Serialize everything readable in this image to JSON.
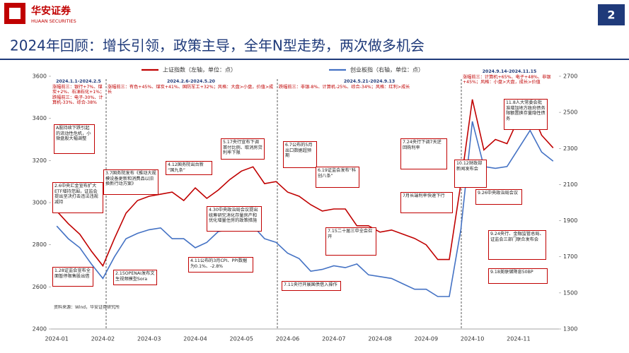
{
  "header": {
    "logo_cn": "华安证券",
    "logo_en": "HUAAN SECURITIES",
    "page_number": "2"
  },
  "chart_data": {
    "type": "line",
    "title": "2024年回顾：增长引领，政策主导，全年N型走势，两次做多机会",
    "categories": [
      "2024-01",
      null,
      null,
      null,
      "2024-02",
      null,
      null,
      null,
      "2024-03",
      null,
      null,
      null,
      "2024-04",
      null,
      null,
      null,
      "2024-05",
      null,
      null,
      null,
      "2024-06",
      null,
      null,
      null,
      "2024-07",
      null,
      null,
      null,
      "2024-08",
      null,
      null,
      null,
      "2024-09",
      null,
      null,
      null,
      "2024-10",
      null,
      null,
      null,
      "2024-11",
      null,
      null,
      null
    ],
    "series": [
      {
        "name": "上证指数（左轴，单位：点）",
        "color": "#c00000",
        "values": [
          2960,
          2900,
          2850,
          2770,
          2700,
          2830,
          2950,
          3010,
          3030,
          3040,
          3050,
          3010,
          3070,
          3020,
          3060,
          3110,
          3150,
          3170,
          3090,
          3100,
          3050,
          3030,
          2990,
          2960,
          2970,
          2970,
          2890,
          2890,
          2860,
          2870,
          2850,
          2830,
          2800,
          2730,
          2730,
          3090,
          3490,
          3250,
          3300,
          3280,
          3400,
          3450,
          3320,
          3260
        ]
      },
      {
        "name": "创业板指（右轴，单位：点）",
        "color": "#4472c4",
        "axis": "y2",
        "values": [
          1870,
          1800,
          1750,
          1660,
          1580,
          1700,
          1800,
          1830,
          1850,
          1860,
          1800,
          1800,
          1750,
          1780,
          1840,
          1850,
          1870,
          1870,
          1800,
          1780,
          1720,
          1690,
          1620,
          1630,
          1650,
          1640,
          1660,
          1600,
          1590,
          1580,
          1550,
          1520,
          1520,
          1480,
          1480,
          1850,
          2450,
          2200,
          2190,
          2200,
          2300,
          2400,
          2280,
          2230
        ]
      }
    ],
    "ylim": [
      2400,
      3600
    ],
    "yticks": [
      2400,
      2600,
      2800,
      3000,
      3200,
      3400,
      3600
    ],
    "y2lim": [
      1300,
      2700
    ],
    "y2ticks": [
      1300,
      1500,
      1700,
      1900,
      2100,
      2300,
      2500,
      2700
    ],
    "periods": [
      {
        "dates": "2024.1.1-2024.2.5",
        "text": "涨幅前三：银行+7%、煤炭+2%、石油石化+1%；跌幅前三：电子-30%、计算机-33%、综合-38%"
      },
      {
        "dates": "2024.2.6-2024.5.20",
        "text": "涨幅前三：有色+45%、煤炭+41%、国防军工+32%；风格：大盘>小盘，价值>成长"
      },
      {
        "dates": "2024.5.21-2024.9.13",
        "text": "跌幅前三：非银-8%、计算机-25%、综合-34%；风格：红利>成长"
      },
      {
        "dates": "2024.9.14-2024.11.15",
        "text": "涨幅前三：计算机+65%、电子+48%、非银+45%；风格：小盘>大盘，成长>价值"
      }
    ],
    "annotations": [
      "A股持续下跌引起的流动性危机，小微盘股大幅调整",
      "2.6中央汇金宣布扩大ETF增持范围，证监会提出坚决打击违法违规减持",
      "1.28证监会宣布全面暂停限售股出借",
      "2.15OPENAI发布文生视频模型Sora",
      "3.7国务院发布《推动大规模设备更新和消费品以旧换新行动方案》",
      "4.12国务院出台新“国九条”",
      "5.17央行宣布下调首付比例、取消房贷利率下限",
      "4.30中央政治局会议提出统筹研究消化存量房产和优化增量住房的政策措施",
      "4.11公布的3月CPI、PPI数据为0.1%、-2.8%",
      "6.7公布的5月出口数据超预期",
      "6.19证监会发布“科创八条”",
      "7.24央行下调7天逆回购利率",
      "7.15二十届三中全会召开",
      "7.11央行开展国债借入操作",
      "7月长端利率快速下行",
      "9.24央行、金融监管总局、证监会三部门联合发布会",
      "9.26中央政治局会议",
      "10.12财政部新闻发布会",
      "11.8人大常委会批准增加地方政府债务限额置换存量隐性债务",
      "9.18美联储降息50BP"
    ],
    "source": "资料来源：Wind，华安证券研究所"
  }
}
